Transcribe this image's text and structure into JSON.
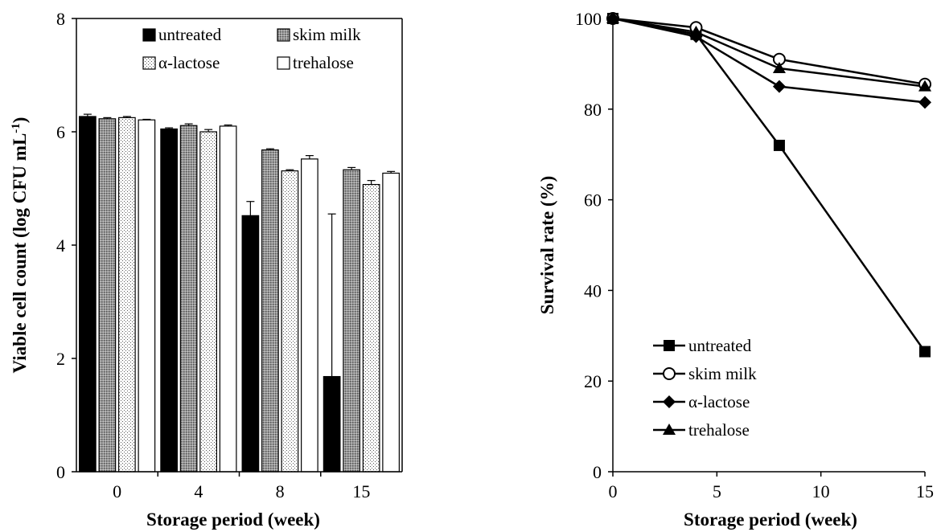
{
  "chart_data": [
    {
      "type": "bar",
      "xlabel": "Storage period (week)",
      "ylabel": "Viable cell count (log CFU mL",
      "ylabel_sup": "-1",
      "ylabel_close": ")",
      "ylim": [
        0,
        8
      ],
      "yticks": [
        "0",
        "2",
        "4",
        "6",
        "8"
      ],
      "categories": [
        "0",
        "4",
        "8",
        "15"
      ],
      "legend_position": "top-right",
      "series": [
        {
          "name": "untreated",
          "values": [
            6.27,
            6.05,
            4.52,
            1.68
          ],
          "errors": [
            0.04,
            0.02,
            0.25,
            2.87
          ],
          "pattern": "solid-black"
        },
        {
          "name": "skim milk",
          "values": [
            6.23,
            6.11,
            5.68,
            5.33
          ],
          "errors": [
            0.02,
            0.03,
            0.02,
            0.04
          ],
          "pattern": "dark-gray-dots"
        },
        {
          "name": "α-lactose",
          "values": [
            6.25,
            6.0,
            5.31,
            5.07
          ],
          "errors": [
            0.02,
            0.04,
            0.02,
            0.07
          ],
          "pattern": "light-dots"
        },
        {
          "name": "trehalose",
          "values": [
            6.21,
            6.1,
            5.52,
            5.27
          ],
          "errors": [
            0.01,
            0.02,
            0.06,
            0.03
          ],
          "pattern": "white"
        }
      ]
    },
    {
      "type": "line",
      "xlabel": "Storage period (week)",
      "ylabel": "Survival rate (%)",
      "xlim": [
        0,
        15
      ],
      "ylim": [
        0,
        100
      ],
      "xticks": [
        "0",
        "5",
        "10",
        "15"
      ],
      "yticks": [
        "0",
        "20",
        "40",
        "60",
        "80",
        "100"
      ],
      "x": [
        0,
        4,
        8,
        15
      ],
      "legend_position": "bottom-left",
      "series": [
        {
          "name": "untreated",
          "values": [
            100,
            96.5,
            72,
            26.5
          ],
          "marker": "square-filled"
        },
        {
          "name": "skim milk",
          "values": [
            100,
            98,
            91,
            85.5
          ],
          "marker": "circle-open"
        },
        {
          "name": "α-lactose",
          "values": [
            100,
            96,
            85,
            81.5
          ],
          "marker": "diamond-filled"
        },
        {
          "name": "trehalose",
          "values": [
            100,
            97,
            89,
            85
          ],
          "marker": "triangle-filled"
        }
      ]
    }
  ]
}
